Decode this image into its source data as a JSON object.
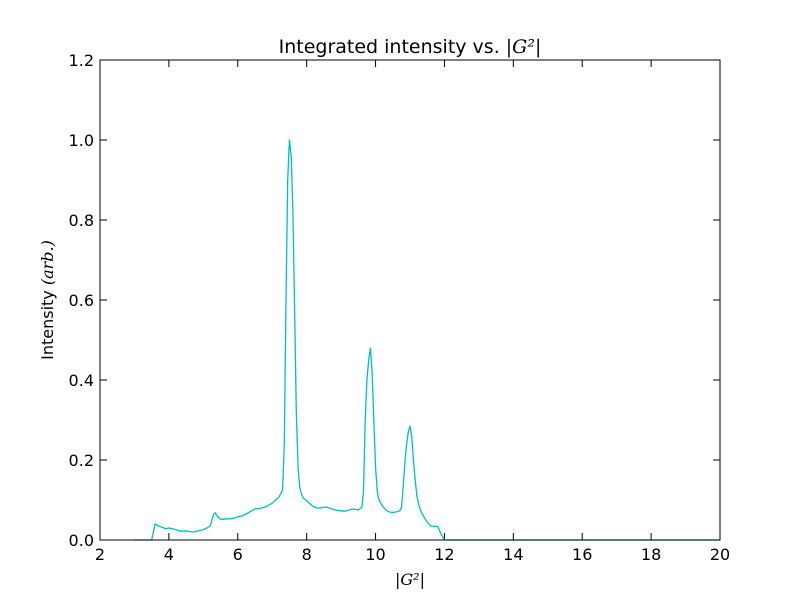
{
  "chart_data": {
    "type": "line",
    "title": "Integrated intensity vs. |G²|",
    "title_parts": {
      "text": "Integrated intensity vs. ",
      "math": "|G²|"
    },
    "xlabel": "|G²|",
    "ylabel": "Intensity (arb.)",
    "ylabel_parts": {
      "text": "Intensity ",
      "math": "(arb.)"
    },
    "xlim": [
      2,
      20
    ],
    "ylim": [
      0,
      1.2
    ],
    "xticks": [
      2,
      4,
      6,
      8,
      10,
      12,
      14,
      16,
      18,
      20
    ],
    "xtick_labels": [
      "2",
      "4",
      "6",
      "8",
      "10",
      "12",
      "14",
      "16",
      "18",
      "20"
    ],
    "yticks": [
      0,
      0.2,
      0.4,
      0.6,
      0.8,
      1.0,
      1.2
    ],
    "ytick_labels": [
      "0.0",
      "0.2",
      "0.4",
      "0.6",
      "0.8",
      "1.0",
      "1.2"
    ],
    "grid": false,
    "line_color": "#00bfbf",
    "series": [
      {
        "x": [
          3.0,
          3.5,
          3.55,
          3.6,
          3.7,
          3.8,
          3.9,
          4.0,
          4.1,
          4.2,
          4.3,
          4.4,
          4.5,
          4.6,
          4.7,
          4.8,
          4.9,
          5.0,
          5.1,
          5.2,
          5.25,
          5.3,
          5.35,
          5.4,
          5.5,
          5.6,
          5.7,
          5.8,
          5.9,
          6.0,
          6.1,
          6.2,
          6.3,
          6.4,
          6.5,
          6.6,
          6.7,
          6.8,
          6.9,
          7.0,
          7.1,
          7.2,
          7.3,
          7.35,
          7.4,
          7.45,
          7.5,
          7.55,
          7.6,
          7.65,
          7.7,
          7.75,
          7.8,
          7.85,
          7.9,
          8.0,
          8.1,
          8.2,
          8.3,
          8.4,
          8.5,
          8.6,
          8.7,
          8.8,
          8.9,
          9.0,
          9.1,
          9.2,
          9.3,
          9.4,
          9.5,
          9.6,
          9.65,
          9.7,
          9.75,
          9.8,
          9.85,
          9.9,
          9.95,
          10.0,
          10.05,
          10.1,
          10.2,
          10.3,
          10.4,
          10.5,
          10.6,
          10.7,
          10.75,
          10.8,
          10.85,
          10.9,
          10.95,
          11.0,
          11.05,
          11.1,
          11.15,
          11.2,
          11.25,
          11.3,
          11.4,
          11.5,
          11.6,
          11.7,
          11.8,
          11.85,
          11.9,
          11.95,
          12.0,
          12.5,
          14.0,
          16.0,
          18.0,
          20.0
        ],
        "y": [
          0.0,
          0.0,
          0.02,
          0.04,
          0.035,
          0.032,
          0.028,
          0.03,
          0.028,
          0.026,
          0.023,
          0.022,
          0.023,
          0.021,
          0.02,
          0.022,
          0.024,
          0.026,
          0.03,
          0.035,
          0.05,
          0.065,
          0.068,
          0.06,
          0.052,
          0.052,
          0.053,
          0.053,
          0.055,
          0.058,
          0.06,
          0.063,
          0.068,
          0.073,
          0.078,
          0.078,
          0.08,
          0.083,
          0.087,
          0.092,
          0.1,
          0.108,
          0.125,
          0.24,
          0.6,
          0.9,
          1.0,
          0.96,
          0.82,
          0.58,
          0.32,
          0.18,
          0.13,
          0.115,
          0.105,
          0.098,
          0.09,
          0.083,
          0.08,
          0.08,
          0.082,
          0.082,
          0.078,
          0.076,
          0.074,
          0.073,
          0.072,
          0.074,
          0.077,
          0.077,
          0.075,
          0.082,
          0.12,
          0.3,
          0.4,
          0.45,
          0.48,
          0.42,
          0.3,
          0.18,
          0.12,
          0.1,
          0.085,
          0.075,
          0.07,
          0.069,
          0.07,
          0.073,
          0.08,
          0.13,
          0.19,
          0.24,
          0.27,
          0.285,
          0.26,
          0.2,
          0.15,
          0.11,
          0.09,
          0.075,
          0.058,
          0.045,
          0.035,
          0.034,
          0.034,
          0.025,
          0.015,
          0.008,
          0.0,
          0.0,
          0.0,
          0.0,
          0.0,
          0.0
        ]
      }
    ]
  }
}
